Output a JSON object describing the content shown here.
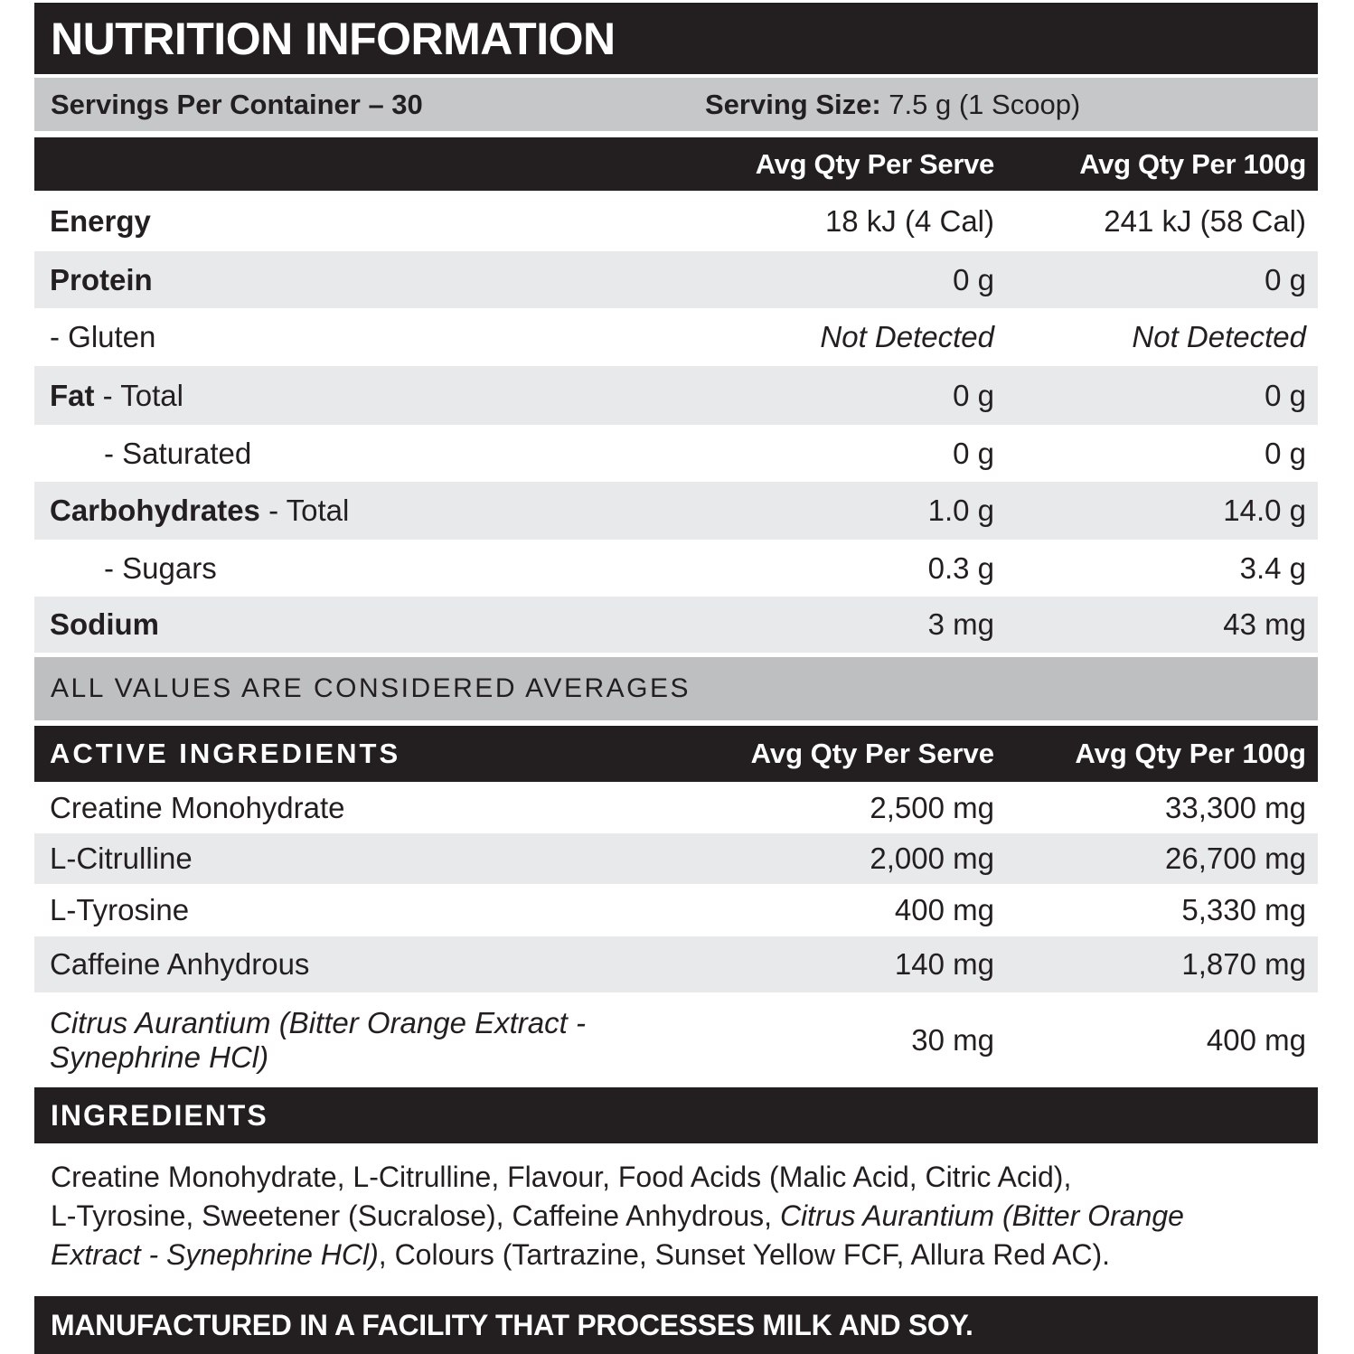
{
  "title": "NUTRITION INFORMATION",
  "servings": {
    "per_container": "Servings Per Container – 30",
    "size_label": "Serving Size:",
    "size_value": " 7.5 g (1 Scoop)"
  },
  "columns": {
    "serve": "Avg Qty Per Serve",
    "per100": "Avg Qty Per 100g"
  },
  "nutrition_rows": [
    {
      "label_bold": "Energy",
      "label_rest": "",
      "serve": "18 kJ (4 Cal)",
      "per100": "241 kJ (58 Cal)"
    },
    {
      "label_bold": "Protein",
      "label_rest": "",
      "serve": "0 g",
      "per100": "0 g"
    },
    {
      "label_bold": "",
      "label_rest": "- Gluten",
      "serve": "Not Detected",
      "per100": "Not Detected"
    },
    {
      "label_bold": "Fat",
      "label_rest": " - Total",
      "serve": "0 g",
      "per100": "0 g"
    },
    {
      "label_bold": "",
      "label_rest": "- Saturated",
      "serve": "0 g",
      "per100": "0 g"
    },
    {
      "label_bold": "Carbohydrates",
      "label_rest": " - Total",
      "serve": "1.0 g",
      "per100": "14.0 g"
    },
    {
      "label_bold": "",
      "label_rest": "- Sugars",
      "serve": "0.3 g",
      "per100": "3.4 g"
    },
    {
      "label_bold": "Sodium",
      "label_rest": "",
      "serve": "3 mg",
      "per100": "43 mg"
    }
  ],
  "averages_note": "ALL VALUES ARE CONSIDERED AVERAGES",
  "active": {
    "header": "ACTIVE INGREDIENTS",
    "rows": [
      {
        "name": "Creatine Monohydrate",
        "serve": "2,500 mg",
        "per100": "33,300 mg"
      },
      {
        "name": "L-Citrulline",
        "serve": "2,000 mg",
        "per100": "26,700 mg"
      },
      {
        "name": "L-Tyrosine",
        "serve": "400 mg",
        "per100": "5,330 mg"
      },
      {
        "name": "Caffeine Anhydrous",
        "serve": "140 mg",
        "per100": "1,870 mg"
      },
      {
        "name": "Citrus Aurantium (Bitter Orange Extract -\nSynephrine HCl)",
        "serve": "30 mg",
        "per100": "400 mg"
      }
    ]
  },
  "ingredients": {
    "header": "INGREDIENTS",
    "segments": [
      {
        "text": "Creatine Monohydrate, L-Citrulline, Flavour, Food Acids (Malic Acid, Citric Acid),\nL-Tyrosine, Sweetener (Sucralose), Caffeine Anhydrous, ",
        "italic": false
      },
      {
        "text": "Citrus Aurantium (Bitter Orange\nExtract - Synephrine HCl)",
        "italic": true
      },
      {
        "text": ", Colours (Tartrazine, Sunset Yellow FCF, Allura Red AC).",
        "italic": false
      }
    ]
  },
  "allergen": "MANUFACTURED IN A FACILITY THAT PROCESSES MILK AND SOY.",
  "colors": {
    "black_band": "#231f20",
    "servings_band_gray": "#c5c7c9",
    "averages_band_gray": "#bdbfc1",
    "row_shade_gray": "#e8e9ea",
    "text": "#231f20",
    "band_text": "#ffffff"
  }
}
